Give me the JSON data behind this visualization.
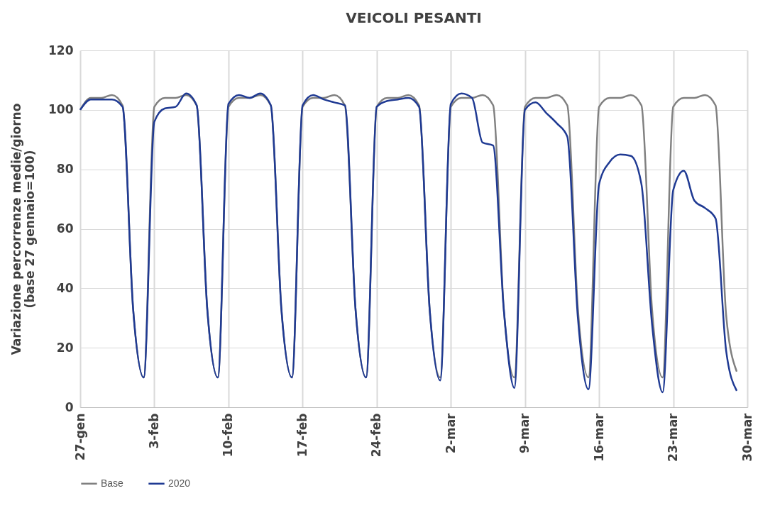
{
  "chart_data": {
    "type": "line",
    "title": "VEICOLI PESANTI",
    "ylabel": "Variazione percorrenze medie/giorno\n(base 27 gennaio=100)",
    "x": [
      "--01-27",
      "--01-28",
      "--01-29",
      "--01-30",
      "--01-31",
      "--02-01",
      "--02-02",
      "--02-03",
      "--02-04",
      "--02-05",
      "--02-06",
      "--02-07",
      "--02-08",
      "--02-09",
      "--02-10",
      "--02-11",
      "--02-12",
      "--02-13",
      "--02-14",
      "--02-15",
      "--02-16",
      "--02-17",
      "--02-18",
      "--02-19",
      "--02-20",
      "--02-21",
      "--02-22",
      "--02-23",
      "--02-24",
      "--02-25",
      "--02-26",
      "--02-27",
      "--02-28",
      "--02-29",
      "--03-01",
      "--03-02",
      "--03-03",
      "--03-04",
      "--03-05",
      "--03-06",
      "--03-07",
      "--03-08",
      "--03-09",
      "--03-10",
      "--03-11",
      "--03-12",
      "--03-13",
      "--03-14",
      "--03-15",
      "--03-16",
      "--03-17",
      "--03-18",
      "--03-19",
      "--03-20",
      "--03-21",
      "--03-22",
      "--03-23",
      "--03-24",
      "--03-25",
      "--03-26",
      "--03-27",
      "--03-28",
      "--03-29"
    ],
    "series": [
      {
        "name": "Base",
        "color": "#808080",
        "values": [
          100,
          104,
          104,
          105,
          101.5,
          33,
          10,
          101,
          104,
          104,
          105,
          101.5,
          33,
          10,
          101,
          104,
          104,
          105,
          101.5,
          33,
          10,
          101,
          104,
          104,
          105,
          101.5,
          33,
          10,
          101,
          104,
          104,
          105,
          101.5,
          33,
          10,
          101,
          104,
          104,
          105,
          101.5,
          33,
          10,
          101,
          104,
          104,
          105,
          101.5,
          33,
          10,
          101,
          104,
          104,
          105,
          101.5,
          33,
          10,
          101,
          104,
          104,
          105,
          101.5,
          31,
          12
        ]
      },
      {
        "name": "2020",
        "color": "#1f3a93",
        "values": [
          100,
          103.5,
          103.5,
          103.5,
          101,
          33,
          10,
          96,
          100.5,
          101,
          105.5,
          101.5,
          33,
          10,
          102,
          105,
          104,
          105.5,
          101.5,
          33,
          10,
          101.5,
          105,
          103.5,
          102.5,
          101.5,
          33,
          10,
          101,
          103,
          103.5,
          104,
          101,
          33,
          9,
          102,
          105.5,
          104,
          89,
          88,
          33,
          6.5,
          100,
          102.5,
          99,
          95.5,
          91,
          30,
          6,
          75,
          82.5,
          85,
          84.5,
          75,
          28,
          5,
          73,
          79.5,
          69.5,
          67,
          63.5,
          19,
          5.5
        ]
      }
    ],
    "xlim": [
      "--01-27",
      "--03-30"
    ],
    "xticks": [
      {
        "value": "--01-27",
        "label": "27-gen"
      },
      {
        "value": "--02-03",
        "label": "3-feb"
      },
      {
        "value": "--02-10",
        "label": "10-feb"
      },
      {
        "value": "--02-17",
        "label": "17-feb"
      },
      {
        "value": "--02-24",
        "label": "24-feb"
      },
      {
        "value": "--03-02",
        "label": "2-mar"
      },
      {
        "value": "--03-09",
        "label": "9-mar"
      },
      {
        "value": "--03-16",
        "label": "16-mar"
      },
      {
        "value": "--03-23",
        "label": "23-mar"
      },
      {
        "value": "--03-30",
        "label": "30-mar"
      }
    ],
    "ylim": [
      0,
      120
    ],
    "yticks": [
      0,
      20,
      40,
      60,
      80,
      100,
      120
    ],
    "grid": true,
    "legend": "bottom",
    "line_style": "solid"
  }
}
